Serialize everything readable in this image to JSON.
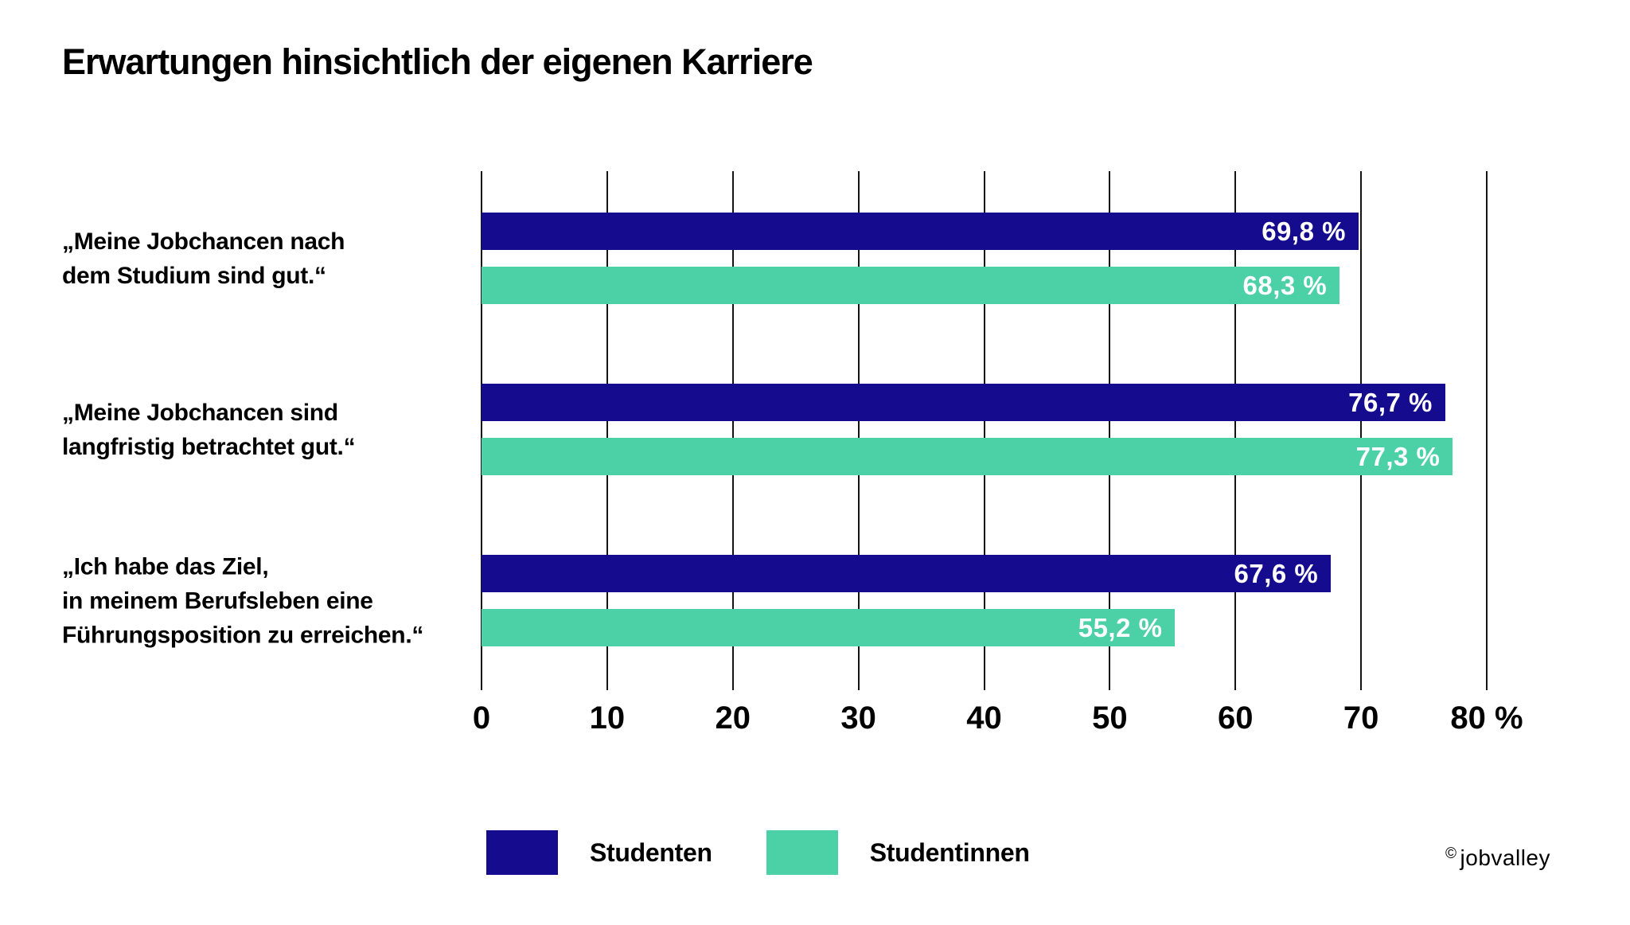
{
  "chart_data": {
    "type": "bar",
    "orientation": "horizontal",
    "title": "Erwartungen hinsichtlich der eigenen Karriere",
    "categories": [
      {
        "label": "„Meine Jobchancen nach dem Studium sind gut.“",
        "lines": [
          "„Meine Jobchancen nach",
          "dem Studium sind gut.“"
        ]
      },
      {
        "label": "„Meine Jobchancen sind langfristig betrachtet gut.“",
        "lines": [
          "„Meine Jobchancen sind",
          "langfristig betrachtet gut.“"
        ]
      },
      {
        "label": "„Ich habe das Ziel, in meinem Berufsleben eine Führungsposition zu erreichen.“",
        "lines": [
          "„Ich habe das Ziel,",
          "in meinem Berufsleben eine",
          "Führungsposition zu erreichen.“"
        ]
      }
    ],
    "series": [
      {
        "name": "Studenten",
        "color": "#140b8f",
        "values": [
          69.8,
          76.7,
          67.6
        ],
        "value_labels": [
          "69,8 %",
          "76,7 %",
          "67,6 %"
        ]
      },
      {
        "name": "Studentinnen",
        "color": "#4bd1a5",
        "values": [
          68.3,
          77.3,
          55.2
        ],
        "value_labels": [
          "68,3 %",
          "77,3 %",
          "55,2 %"
        ]
      }
    ],
    "xlim": [
      0,
      80
    ],
    "x_ticks": [
      "0",
      "10",
      "20",
      "30",
      "40",
      "50",
      "60",
      "70",
      "80 %"
    ],
    "grid": true,
    "legend_position": "bottom",
    "value_label_color": "#ffffff",
    "gridline_color": "#141414"
  },
  "credit": {
    "symbol": "©",
    "name": "jobvalley"
  }
}
